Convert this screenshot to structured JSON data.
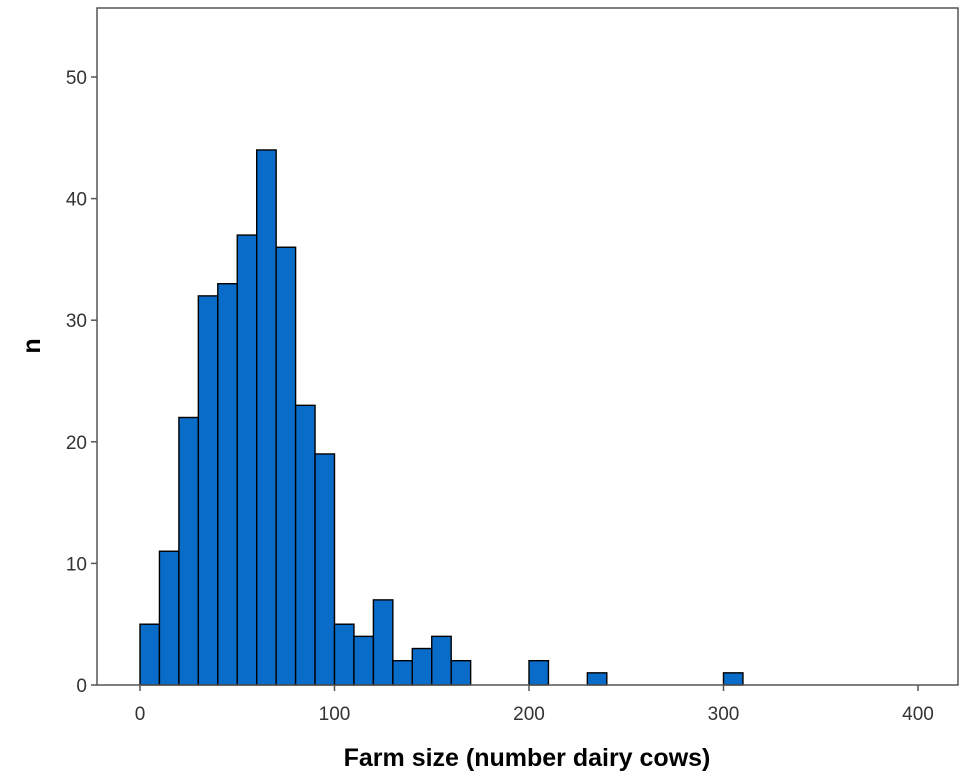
{
  "chart_data": {
    "type": "bar",
    "subtype": "histogram",
    "xlabel": "Farm size (number dairy cows)",
    "ylabel": "n",
    "xlim": [
      -25,
      420
    ],
    "ylim": [
      0,
      55
    ],
    "xticks": [
      0,
      100,
      200,
      300,
      400
    ],
    "yticks": [
      0,
      10,
      20,
      30,
      40,
      50
    ],
    "bin_width": 10,
    "grid": false,
    "bar_color": "#0a6cc9",
    "bins": [
      {
        "start": 0,
        "end": 10,
        "count": 5
      },
      {
        "start": 10,
        "end": 20,
        "count": 11
      },
      {
        "start": 20,
        "end": 30,
        "count": 22
      },
      {
        "start": 30,
        "end": 40,
        "count": 32
      },
      {
        "start": 40,
        "end": 50,
        "count": 33
      },
      {
        "start": 50,
        "end": 60,
        "count": 37
      },
      {
        "start": 60,
        "end": 70,
        "count": 44
      },
      {
        "start": 70,
        "end": 80,
        "count": 36
      },
      {
        "start": 80,
        "end": 90,
        "count": 23
      },
      {
        "start": 90,
        "end": 100,
        "count": 19
      },
      {
        "start": 100,
        "end": 110,
        "count": 5
      },
      {
        "start": 110,
        "end": 120,
        "count": 4
      },
      {
        "start": 120,
        "end": 130,
        "count": 7
      },
      {
        "start": 130,
        "end": 140,
        "count": 2
      },
      {
        "start": 140,
        "end": 150,
        "count": 3
      },
      {
        "start": 150,
        "end": 160,
        "count": 4
      },
      {
        "start": 160,
        "end": 170,
        "count": 2
      },
      {
        "start": 200,
        "end": 210,
        "count": 2
      },
      {
        "start": 230,
        "end": 240,
        "count": 1
      },
      {
        "start": 300,
        "end": 310,
        "count": 1
      }
    ]
  }
}
